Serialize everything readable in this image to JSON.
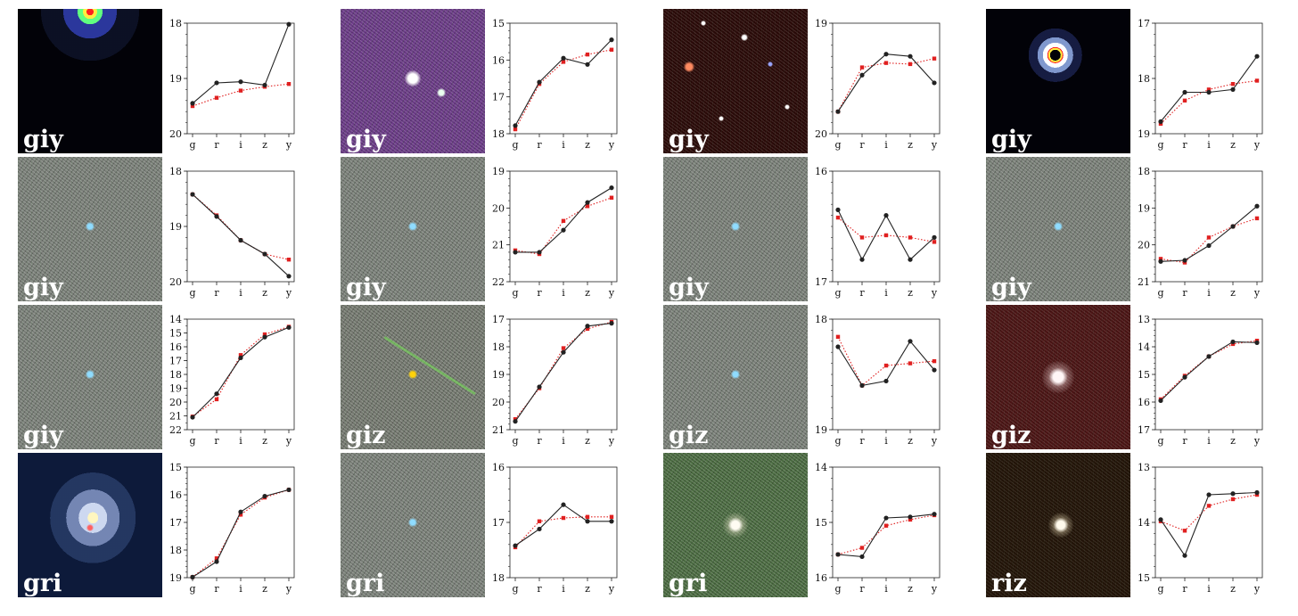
{
  "chart_data": [
    {
      "type": "line",
      "bands": "giy",
      "thumb_style": "bright-core",
      "categories": [
        "g",
        "r",
        "i",
        "z",
        "y"
      ],
      "yticks": [
        "18",
        "19",
        "20"
      ],
      "ylim": [
        20,
        18
      ],
      "series": [
        {
          "values": [
            19.45,
            19.08,
            19.06,
            19.12,
            18.02
          ],
          "color": "#222222",
          "marker": "circle",
          "style": "solid"
        },
        {
          "values": [
            19.5,
            19.35,
            19.22,
            19.15,
            19.1
          ],
          "color": "#e02020",
          "marker": "square",
          "style": "dotted"
        }
      ]
    },
    {
      "type": "line",
      "bands": "giy",
      "thumb_style": "purple",
      "categories": [
        "g",
        "r",
        "i",
        "z",
        "y"
      ],
      "yticks": [
        "15",
        "16",
        "17",
        "18"
      ],
      "ylim": [
        18,
        15
      ],
      "series": [
        {
          "values": [
            17.78,
            16.6,
            15.95,
            16.12,
            15.45
          ],
          "color": "#222222",
          "marker": "circle",
          "style": "solid"
        },
        {
          "values": [
            17.88,
            16.65,
            16.05,
            15.85,
            15.72
          ],
          "color": "#e02020",
          "marker": "square",
          "style": "dotted"
        }
      ]
    },
    {
      "type": "line",
      "bands": "giy",
      "thumb_style": "red-starfield",
      "categories": [
        "g",
        "r",
        "i",
        "z",
        "y"
      ],
      "yticks": [
        "19",
        "20"
      ],
      "ylim": [
        20,
        19
      ],
      "series": [
        {
          "values": [
            19.8,
            19.47,
            19.28,
            19.3,
            19.54
          ],
          "color": "#222222",
          "marker": "circle",
          "style": "solid"
        },
        {
          "values": [
            19.8,
            19.4,
            19.36,
            19.37,
            19.32
          ],
          "color": "#e02020",
          "marker": "square",
          "style": "dotted"
        }
      ]
    },
    {
      "type": "line",
      "bands": "giy",
      "thumb_style": "ring",
      "categories": [
        "g",
        "r",
        "i",
        "z",
        "y"
      ],
      "yticks": [
        "17",
        "18",
        "19"
      ],
      "ylim": [
        19,
        17
      ],
      "series": [
        {
          "values": [
            18.78,
            18.25,
            18.25,
            18.2,
            17.6
          ],
          "color": "#222222",
          "marker": "circle",
          "style": "solid"
        },
        {
          "values": [
            18.82,
            18.4,
            18.2,
            18.1,
            18.04
          ],
          "color": "#e02020",
          "marker": "square",
          "style": "dotted"
        }
      ]
    },
    {
      "type": "line",
      "bands": "giy",
      "thumb_style": "noise",
      "categories": [
        "g",
        "r",
        "i",
        "z",
        "y"
      ],
      "yticks": [
        "18",
        "19",
        "20"
      ],
      "ylim": [
        20,
        18
      ],
      "series": [
        {
          "values": [
            18.42,
            18.82,
            19.25,
            19.5,
            19.9
          ],
          "color": "#222222",
          "marker": "circle",
          "style": "solid"
        },
        {
          "values": [
            18.42,
            18.8,
            19.25,
            19.5,
            19.6
          ],
          "color": "#e02020",
          "marker": "square",
          "style": "dotted"
        }
      ]
    },
    {
      "type": "line",
      "bands": "giy",
      "thumb_style": "noise",
      "categories": [
        "g",
        "r",
        "i",
        "z",
        "y"
      ],
      "yticks": [
        "19",
        "20",
        "21",
        "22"
      ],
      "ylim": [
        22,
        19
      ],
      "series": [
        {
          "values": [
            21.2,
            21.2,
            20.6,
            19.85,
            19.45
          ],
          "color": "#222222",
          "marker": "circle",
          "style": "solid"
        },
        {
          "values": [
            21.15,
            21.25,
            20.35,
            19.95,
            19.72
          ],
          "color": "#e02020",
          "marker": "square",
          "style": "dotted"
        }
      ]
    },
    {
      "type": "line",
      "bands": "giy",
      "thumb_style": "noise",
      "categories": [
        "g",
        "r",
        "i",
        "z",
        "y"
      ],
      "yticks": [
        "16",
        "17"
      ],
      "ylim": [
        17,
        16
      ],
      "series": [
        {
          "values": [
            16.35,
            16.8,
            16.4,
            16.8,
            16.6
          ],
          "color": "#222222",
          "marker": "circle",
          "style": "solid"
        },
        {
          "values": [
            16.42,
            16.6,
            16.58,
            16.6,
            16.64
          ],
          "color": "#e02020",
          "marker": "square",
          "style": "dotted"
        }
      ]
    },
    {
      "type": "line",
      "bands": "giy",
      "thumb_style": "noise",
      "categories": [
        "g",
        "r",
        "i",
        "z",
        "y"
      ],
      "yticks": [
        "18",
        "19",
        "20",
        "21"
      ],
      "ylim": [
        21,
        18
      ],
      "series": [
        {
          "values": [
            20.45,
            20.42,
            20.02,
            19.5,
            18.95
          ],
          "color": "#222222",
          "marker": "circle",
          "style": "solid"
        },
        {
          "values": [
            20.38,
            20.48,
            19.8,
            19.5,
            19.28
          ],
          "color": "#e02020",
          "marker": "square",
          "style": "dotted"
        }
      ]
    },
    {
      "type": "line",
      "bands": "giy",
      "thumb_style": "noise",
      "categories": [
        "g",
        "r",
        "i",
        "z",
        "y"
      ],
      "yticks": [
        "14",
        "15",
        "16",
        "17",
        "18",
        "19",
        "20",
        "21",
        "22"
      ],
      "ylim": [
        22,
        14
      ],
      "series": [
        {
          "values": [
            21.1,
            19.4,
            16.8,
            15.3,
            14.6
          ],
          "color": "#222222",
          "marker": "circle",
          "style": "solid"
        },
        {
          "values": [
            21.05,
            19.8,
            16.6,
            15.1,
            14.55
          ],
          "color": "#e02020",
          "marker": "square",
          "style": "dotted"
        }
      ]
    },
    {
      "type": "line",
      "bands": "giz",
      "thumb_style": "noise-streak",
      "categories": [
        "g",
        "r",
        "i",
        "z",
        "y"
      ],
      "yticks": [
        "17",
        "18",
        "19",
        "20",
        "21"
      ],
      "ylim": [
        21,
        17
      ],
      "series": [
        {
          "values": [
            20.7,
            19.45,
            18.2,
            17.25,
            17.15
          ],
          "color": "#222222",
          "marker": "circle",
          "style": "solid"
        },
        {
          "values": [
            20.62,
            19.5,
            18.05,
            17.35,
            17.1
          ],
          "color": "#e02020",
          "marker": "square",
          "style": "dotted"
        }
      ]
    },
    {
      "type": "line",
      "bands": "giz",
      "thumb_style": "noise",
      "categories": [
        "g",
        "r",
        "i",
        "z",
        "y"
      ],
      "yticks": [
        "18",
        "19"
      ],
      "ylim": [
        19,
        18
      ],
      "series": [
        {
          "values": [
            18.25,
            18.6,
            18.56,
            18.2,
            18.46
          ],
          "color": "#222222",
          "marker": "circle",
          "style": "solid"
        },
        {
          "values": [
            18.16,
            18.6,
            18.42,
            18.4,
            18.38
          ],
          "color": "#e02020",
          "marker": "square",
          "style": "dotted"
        }
      ]
    },
    {
      "type": "line",
      "bands": "giz",
      "thumb_style": "dark-red",
      "categories": [
        "g",
        "r",
        "i",
        "z",
        "y"
      ],
      "yticks": [
        "13",
        "14",
        "15",
        "16",
        "17"
      ],
      "ylim": [
        17,
        13
      ],
      "series": [
        {
          "values": [
            15.95,
            15.1,
            14.35,
            13.82,
            13.85
          ],
          "color": "#222222",
          "marker": "circle",
          "style": "solid"
        },
        {
          "values": [
            15.9,
            15.05,
            14.35,
            13.9,
            13.78
          ],
          "color": "#e02020",
          "marker": "square",
          "style": "dotted"
        }
      ]
    },
    {
      "type": "line",
      "bands": "gri",
      "thumb_style": "galaxy",
      "categories": [
        "g",
        "r",
        "i",
        "z",
        "y"
      ],
      "yticks": [
        "15",
        "16",
        "17",
        "18",
        "19"
      ],
      "ylim": [
        19,
        15
      ],
      "series": [
        {
          "values": [
            18.98,
            18.42,
            16.62,
            16.05,
            15.82
          ],
          "color": "#222222",
          "marker": "circle",
          "style": "solid"
        },
        {
          "values": [
            18.98,
            18.3,
            16.72,
            16.1,
            15.82
          ],
          "color": "#e02020",
          "marker": "square",
          "style": "dotted"
        }
      ]
    },
    {
      "type": "line",
      "bands": "gri",
      "thumb_style": "noise",
      "categories": [
        "g",
        "r",
        "i",
        "z",
        "y"
      ],
      "yticks": [
        "16",
        "17",
        "18"
      ],
      "ylim": [
        18,
        16
      ],
      "series": [
        {
          "values": [
            17.42,
            17.12,
            16.68,
            16.98,
            16.98
          ],
          "color": "#222222",
          "marker": "circle",
          "style": "solid"
        },
        {
          "values": [
            17.45,
            16.98,
            16.92,
            16.9,
            16.9
          ],
          "color": "#e02020",
          "marker": "square",
          "style": "dotted"
        }
      ]
    },
    {
      "type": "line",
      "bands": "gri",
      "thumb_style": "green-noise",
      "categories": [
        "g",
        "r",
        "i",
        "z",
        "y"
      ],
      "yticks": [
        "14",
        "15",
        "16"
      ],
      "ylim": [
        16,
        14
      ],
      "series": [
        {
          "values": [
            15.58,
            15.62,
            14.92,
            14.9,
            14.85
          ],
          "color": "#222222",
          "marker": "circle",
          "style": "solid"
        },
        {
          "values": [
            15.58,
            15.46,
            15.06,
            14.95,
            14.87
          ],
          "color": "#e02020",
          "marker": "square",
          "style": "dotted"
        }
      ]
    },
    {
      "type": "line",
      "bands": "riz",
      "thumb_style": "dark-brown",
      "categories": [
        "g",
        "r",
        "i",
        "z",
        "y"
      ],
      "yticks": [
        "13",
        "14",
        "15"
      ],
      "ylim": [
        15,
        13
      ],
      "series": [
        {
          "values": [
            13.95,
            14.6,
            13.5,
            13.48,
            13.46
          ],
          "color": "#222222",
          "marker": "circle",
          "style": "solid"
        },
        {
          "values": [
            13.98,
            14.15,
            13.7,
            13.58,
            13.5
          ],
          "color": "#e02020",
          "marker": "square",
          "style": "dotted"
        }
      ]
    }
  ]
}
